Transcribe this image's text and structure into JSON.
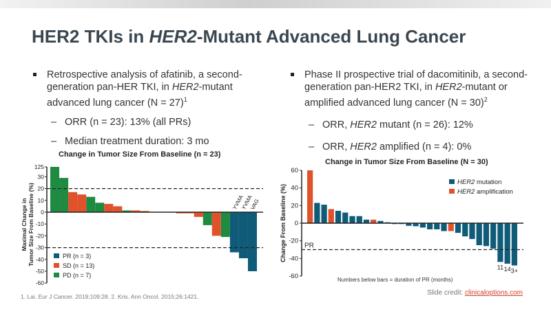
{
  "slide": {
    "title_part1": "HER2 TKIs in ",
    "title_italic": "HER2",
    "title_part2": "-Mutant Advanced Lung Cancer"
  },
  "left": {
    "bullet_a": "Retrospective analysis of afatinib, a second-generation pan-HER TKI, in ",
    "bullet_i": "HER2",
    "bullet_b": "-mutant advanced lung cancer (N = 27)",
    "bullet_sup": "1",
    "sub1": "ORR (n = 23): 13% (all PRs)",
    "sub2": "Median treatment duration: 3 mo"
  },
  "right": {
    "bullet_a": "Phase II prospective trial of dacomitinib, a second-generation pan-HER2 TKI, in ",
    "bullet_i": "HER2",
    "bullet_b": "-mutant or amplified advanced lung cancer (N = 30)",
    "bullet_sup": "2",
    "sub1_a": "ORR, ",
    "sub1_i": "HER2",
    "sub1_b": " mutant (n = 26): 12%",
    "sub2_a": "ORR, ",
    "sub2_i": "HER2",
    "sub2_b": " amplified (n = 4): 0%"
  },
  "footnote": "1. Lai. Eur J Cancer. 2019;109:28. 2. Kris. Ann Oncol. 2015;26:1421.",
  "credit_label": "Slide credit: ",
  "credit_link": "clinicaloptions.com",
  "colors": {
    "PR": "#0f5b78",
    "SD": "#e0522b",
    "PD": "#1f8b41",
    "mutation": "#0f5b78",
    "amplification": "#e0522b"
  },
  "chart_data": [
    {
      "type": "bar",
      "title": "Change in Tumor Size From Baseline (n = 23)",
      "ylabel": "Maximal Change in Tumor Size From Baseline (%)",
      "ylim": [
        -60,
        125
      ],
      "axis_break": "between 30 and 125",
      "yticks": [
        "125",
        "30",
        "20",
        "10",
        "0",
        "-10",
        "-20",
        "-30",
        "-40",
        "-50",
        "-60"
      ],
      "reference_lines": [
        20,
        -30
      ],
      "legend": [
        {
          "key": "PR",
          "label": "PR (n = 3)"
        },
        {
          "key": "SD",
          "label": "SD (n = 13)"
        },
        {
          "key": "PD",
          "label": "PD (n = 7)"
        }
      ],
      "legend_position": "bottom-left",
      "values": [
        125,
        29,
        17,
        15,
        13,
        8,
        7,
        5,
        1.5,
        1.5,
        1,
        0,
        0,
        0,
        -1,
        -1,
        -4,
        -11,
        -20,
        -21,
        -34,
        -39,
        -50
      ],
      "groups": [
        "PD",
        "PD",
        "SD",
        "SD",
        "PD",
        "PD",
        "SD",
        "SD",
        "PD",
        "SD",
        "SD",
        "SD",
        "SD",
        "SD",
        "SD",
        "SD",
        "SD",
        "PD",
        "SD",
        "PD",
        "PR",
        "PR",
        "PR"
      ],
      "bar_labels": {
        "20": "YVMA",
        "21": "YVMA",
        "22": "VAG"
      }
    },
    {
      "type": "bar",
      "title": "Change in Tumor Size From Baseline (N = 30)",
      "ylabel": "Change From Baseline (%)",
      "ylim": [
        -60,
        60
      ],
      "yticks": [
        "60",
        "40",
        "20",
        "0",
        "-20",
        "-40",
        "-60"
      ],
      "reference_lines": [
        -30
      ],
      "reference_label": "PR",
      "legend": [
        {
          "key": "mutation",
          "label_i": "HER2",
          "label": " mutation"
        },
        {
          "key": "amplification",
          "label_i": "HER2",
          "label": " amplification"
        }
      ],
      "legend_position": "top-right",
      "values": [
        60,
        23,
        21,
        16,
        14,
        12,
        8,
        8,
        4,
        4,
        2.5,
        1,
        -1,
        -1,
        -3,
        -3.5,
        -5,
        -7,
        -7,
        -9,
        -9,
        -11,
        -15,
        -18,
        -25,
        -26,
        -29,
        -44,
        -46,
        -48
      ],
      "groups": [
        "amplification",
        "mutation",
        "mutation",
        "amplification",
        "mutation",
        "mutation",
        "mutation",
        "mutation",
        "mutation",
        "amplification",
        "mutation",
        "mutation",
        "mutation",
        "mutation",
        "mutation",
        "mutation",
        "mutation",
        "mutation",
        "mutation",
        "mutation",
        "amplification",
        "mutation",
        "mutation",
        "mutation",
        "mutation",
        "mutation",
        "mutation",
        "mutation",
        "mutation",
        "mutation"
      ],
      "bar_labels": {
        "27": "11",
        "28": "14",
        "29": "3+"
      },
      "note": "Numbers below bars = duration of PR (months)"
    }
  ]
}
